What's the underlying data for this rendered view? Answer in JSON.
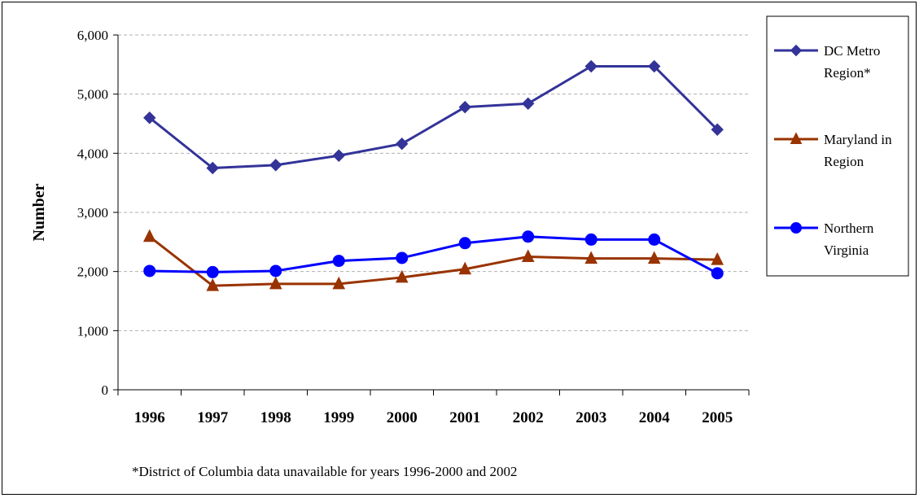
{
  "chart_data": {
    "type": "line",
    "title": "",
    "xlabel": "",
    "ylabel": "Number",
    "ylim": [
      0,
      6000
    ],
    "yticks": [
      0,
      1000,
      2000,
      3000,
      4000,
      5000,
      6000
    ],
    "ytick_labels": [
      "0",
      "1,000",
      "2,000",
      "3,000",
      "4,000",
      "5,000",
      "6,000"
    ],
    "categories": [
      "1996",
      "1997",
      "1998",
      "1999",
      "2000",
      "2001",
      "2002",
      "2003",
      "2004",
      "2005"
    ],
    "grid": "horizontal dashed",
    "legend_position": "right",
    "series": [
      {
        "name": "DC Metro Region*",
        "name_lines": [
          "DC Metro",
          "Region*"
        ],
        "color": "#333399",
        "marker": "diamond",
        "values": [
          4600,
          3750,
          3800,
          3960,
          4160,
          4780,
          4840,
          5470,
          5470,
          4400
        ]
      },
      {
        "name": "Maryland in Region",
        "name_lines": [
          "Maryland in",
          "Region"
        ],
        "color": "#993300",
        "marker": "triangle",
        "values": [
          2590,
          1760,
          1790,
          1790,
          1900,
          2040,
          2250,
          2220,
          2220,
          2200
        ]
      },
      {
        "name": "Northern Virginia",
        "name_lines": [
          "Northern",
          "Virginia"
        ],
        "color": "#0000FF",
        "marker": "circle",
        "values": [
          2010,
          1990,
          2010,
          2180,
          2230,
          2480,
          2590,
          2540,
          2540,
          1970
        ]
      }
    ],
    "footnote": "*District of Columbia data unavailable for years 1996-2000 and 2002"
  }
}
